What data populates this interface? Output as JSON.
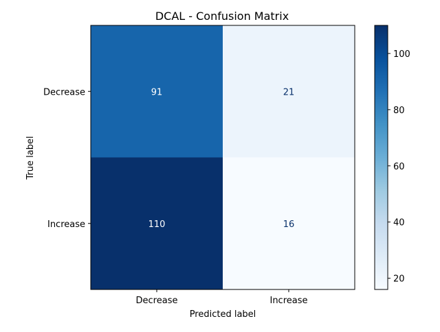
{
  "chart_data": {
    "type": "heatmap",
    "title": "DCAL - Confusion Matrix",
    "xlabel": "Predicted label",
    "ylabel": "True label",
    "x_categories": [
      "Decrease",
      "Increase"
    ],
    "y_categories": [
      "Decrease",
      "Increase"
    ],
    "values": [
      [
        91,
        21
      ],
      [
        110,
        16
      ]
    ],
    "colormap": "Blues",
    "value_range": [
      16,
      110
    ],
    "colorbar_ticks": [
      20,
      40,
      60,
      80,
      100
    ],
    "grid": false
  }
}
